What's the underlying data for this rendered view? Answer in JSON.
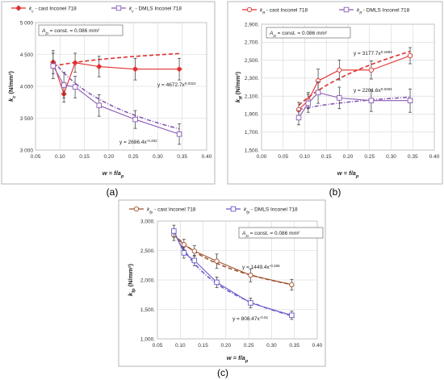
{
  "panel_labels": [
    "(a)",
    "(b)",
    "(c)"
  ],
  "chart_data": [
    {
      "type": "line",
      "panel": "(a)",
      "xlabel_main": "w = f/a",
      "xlabel_sub": "p",
      "ylabel_main": "k",
      "ylabel_sub": "c",
      "ylabel_unit": " (N/mm²)",
      "xlim": [
        0.05,
        0.4
      ],
      "ylim": [
        3000,
        5000
      ],
      "xticks": [
        0.05,
        0.1,
        0.15,
        0.2,
        0.25,
        0.3,
        0.35,
        0.4
      ],
      "xtick_labels": [
        "0.05",
        "0.10",
        "0.15",
        "0.20",
        "0.25",
        "0.30",
        "0.35",
        "0.40"
      ],
      "yticks": [
        3000,
        3500,
        4000,
        4500,
        5000
      ],
      "ytick_labels": [
        "3 000",
        "3 500",
        "4 000",
        "4 500",
        "5 000"
      ],
      "grid": true,
      "annotation": "A_D = const. = 0.086 mm²",
      "annotation_main": "A",
      "annotation_sub": "D",
      "annotation_rest": " = const. = 0.086 mm²",
      "legend_position": "top",
      "series": [
        {
          "legend_main": "k",
          "legend_sub": "c",
          "legend_rest": " - cast Inconel 718",
          "color": "#e03030",
          "marker": "diamond",
          "x": [
            0.086,
            0.108,
            0.131,
            0.18,
            0.254,
            0.344
          ],
          "y": [
            4380,
            3880,
            4370,
            4310,
            4270,
            4270
          ],
          "err": [
            180,
            130,
            150,
            160,
            170,
            170
          ]
        },
        {
          "legend_main": "k",
          "legend_sub": "c",
          "legend_rest": " - DMLS Inconel 718",
          "color": "#8a5ab8",
          "marker": "square",
          "x": [
            0.086,
            0.108,
            0.131,
            0.18,
            0.254,
            0.344
          ],
          "y": [
            4320,
            4020,
            3990,
            3700,
            3480,
            3250
          ],
          "err": [
            200,
            200,
            170,
            170,
            140,
            160
          ]
        }
      ],
      "trendlines": [
        {
          "equation_main": "y = 4672.7x",
          "equation_exp": "0.0324",
          "a": 4672.7,
          "b": 0.0324,
          "color": "#e03030",
          "dash": "5,3",
          "xrange": [
            0.086,
            0.344
          ]
        },
        {
          "equation_main": "y = 2686.4x",
          "equation_exp": "-0.202",
          "a": 2686.4,
          "b": -0.202,
          "color": "#8a5ab8",
          "dash": "5,2,1,2",
          "xrange": [
            0.086,
            0.344
          ]
        }
      ]
    },
    {
      "type": "line",
      "panel": "(b)",
      "xlabel_main": "w = f/a",
      "xlabel_sub": "p",
      "ylabel_main": "k",
      "ylabel_sub": "ff",
      "ylabel_unit": " (N/mm²)",
      "xlim": [
        0.0,
        0.4
      ],
      "ylim": [
        1500,
        2900
      ],
      "xticks": [
        0.0,
        0.05,
        0.1,
        0.15,
        0.2,
        0.25,
        0.3,
        0.35,
        0.4
      ],
      "xtick_labels": [
        "0.00",
        "0.05",
        "0.10",
        "0.15",
        "0.20",
        "0.25",
        "0.30",
        "0.35",
        "0.40"
      ],
      "yticks": [
        1500,
        1700,
        1900,
        2100,
        2300,
        2500,
        2700,
        2900
      ],
      "ytick_labels": [
        "1,500.",
        "1,700.",
        "1,900.",
        "2,100.",
        "2,300.",
        "2,500.",
        "2,700.",
        "2,900."
      ],
      "grid": true,
      "annotation": "A_D = const. = 0.086 mm²",
      "annotation_main": "A",
      "annotation_sub": "D",
      "annotation_rest": " = const. = 0.086 mm²",
      "legend_position": "top",
      "series": [
        {
          "legend_main": "k",
          "legend_sub": "ff",
          "legend_rest": " - cast Inconel 718",
          "color": "#e03030",
          "marker": "circle",
          "x": [
            0.086,
            0.108,
            0.131,
            0.18,
            0.254,
            0.344
          ],
          "y": [
            1950,
            2050,
            2270,
            2390,
            2390,
            2550
          ],
          "err": [
            80,
            90,
            130,
            110,
            100,
            90
          ]
        },
        {
          "legend_main": "k",
          "legend_sub": "ff",
          "legend_rest": " - DMLS Inconel 718",
          "color": "#8a5ab8",
          "marker": "square",
          "x": [
            0.086,
            0.108,
            0.131,
            0.18,
            0.254,
            0.344
          ],
          "y": [
            1860,
            2020,
            2140,
            2080,
            2050,
            2050
          ],
          "err": [
            80,
            100,
            120,
            120,
            120,
            130
          ]
        }
      ],
      "trendlines": [
        {
          "equation_main": "y = 3177.7x",
          "equation_exp": "0.1893",
          "a": 3177.7,
          "b": 0.1893,
          "color": "#e03030",
          "dash": "5,3",
          "xrange": [
            0.086,
            0.344
          ]
        },
        {
          "equation_main": "y = 2201.6x",
          "equation_exp": "0.0494",
          "a": 2201.6,
          "b": 0.0494,
          "color": "#8a5ab8",
          "dash": "5,2,1,2",
          "xrange": [
            0.086,
            0.344
          ]
        }
      ]
    },
    {
      "type": "line",
      "panel": "(c)",
      "xlabel_main": "w = f/a",
      "xlabel_sub": "p",
      "ylabel_main": "k",
      "ylabel_sub": "fp",
      "ylabel_unit": " (N/mm²)",
      "xlim": [
        0.05,
        0.4
      ],
      "ylim": [
        1000,
        3000
      ],
      "xticks": [
        0.05,
        0.1,
        0.15,
        0.2,
        0.25,
        0.3,
        0.35,
        0.4
      ],
      "xtick_labels": [
        "0.05",
        "0.10",
        "0.15",
        "0.20",
        "0.25",
        "0.30",
        "0.35",
        "0.40"
      ],
      "yticks": [
        1000,
        1500,
        2000,
        2500,
        3000
      ],
      "ytick_labels": [
        "1,000.",
        "1,500.",
        "2,000.",
        "2,500.",
        "3,000."
      ],
      "grid": true,
      "annotation": "A_D = const. = 0.086 mm²",
      "annotation_main": "A",
      "annotation_sub": "D",
      "annotation_rest": " = const. = 0.086 mm²",
      "legend_position": "top",
      "series": [
        {
          "legend_main": "k",
          "legend_sub": "fp",
          "legend_rest": " - cast Inconel 718",
          "color": "#a0522d",
          "marker": "circle",
          "x": [
            0.086,
            0.108,
            0.131,
            0.18,
            0.254,
            0.344
          ],
          "y": [
            2760,
            2600,
            2490,
            2320,
            2080,
            1920
          ],
          "err": [
            90,
            90,
            90,
            120,
            110,
            90
          ]
        },
        {
          "legend_main": "k",
          "legend_sub": "fp",
          "legend_rest": " - DMLS Inconel 718",
          "color": "#6a5acd",
          "marker": "square",
          "x": [
            0.086,
            0.108,
            0.131,
            0.18,
            0.254,
            0.344
          ],
          "y": [
            2830,
            2460,
            2330,
            1960,
            1610,
            1400
          ],
          "err": [
            100,
            90,
            90,
            90,
            80,
            70
          ]
        }
      ],
      "trendlines": [
        {
          "equation_main": "y = 1449.4x",
          "equation_exp": "-0.265",
          "a": 1449.4,
          "b": -0.265,
          "color": "#a0522d",
          "dash": "5,3",
          "xrange": [
            0.086,
            0.344
          ]
        },
        {
          "equation_main": "y = 808.47x",
          "equation_exp": "-0.51",
          "a": 808.47,
          "b": -0.51,
          "color": "#6a5acd",
          "dash": "5,2,1,2",
          "xrange": [
            0.086,
            0.344
          ]
        }
      ]
    }
  ]
}
